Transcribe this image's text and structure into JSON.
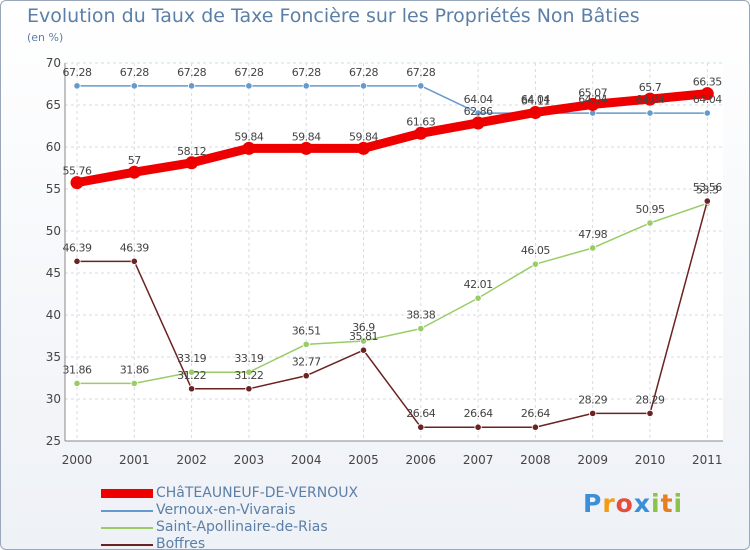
{
  "chart_data": {
    "type": "line",
    "title": "Evolution du Taux de Taxe Foncière sur les Propriétés Non Bâties",
    "unit_label": "(en %)",
    "x": [
      "2000",
      "2001",
      "2002",
      "2003",
      "2004",
      "2005",
      "2006",
      "2007",
      "2008",
      "2009",
      "2010",
      "2011"
    ],
    "ylim": [
      25,
      70
    ],
    "yticks": [
      25,
      30,
      35,
      40,
      45,
      50,
      55,
      60,
      65,
      70
    ],
    "grid": true,
    "series": [
      {
        "name": "CHâTEAUNEUF-DE-VERNOUX",
        "color": "#ee0000",
        "values": [
          55.76,
          57,
          58.12,
          59.84,
          59.84,
          59.84,
          61.63,
          62.86,
          64.11,
          65.07,
          65.7,
          66.35
        ],
        "labels": [
          "55.76",
          "57",
          "58.12",
          "59.84",
          "59.84",
          "59.84",
          "61.63",
          "62.86",
          "64.11",
          "65.07",
          "65.7",
          "66.35"
        ]
      },
      {
        "name": "Vernoux-en-Vivarais",
        "color": "#6699cc",
        "values": [
          67.28,
          67.28,
          67.28,
          67.28,
          67.28,
          67.28,
          67.28,
          64.04,
          64.04,
          64.04,
          64.04,
          64.04
        ],
        "labels": [
          "67.28",
          "67.28",
          "67.28",
          "67.28",
          "67.28",
          "67.28",
          "67.28",
          "64.04",
          "64.04",
          "64.04",
          "64.04",
          "64.04"
        ]
      },
      {
        "name": "Saint-Apollinaire-de-Rias",
        "color": "#99cc66",
        "values": [
          31.86,
          31.86,
          33.19,
          33.19,
          36.51,
          36.9,
          38.38,
          42.01,
          46.05,
          47.98,
          50.95,
          53.3
        ],
        "labels": [
          "31.86",
          "31.86",
          "33.19",
          "33.19",
          "36.51",
          "36.9",
          "38.38",
          "42.01",
          "46.05",
          "47.98",
          "50.95",
          "53.3"
        ]
      },
      {
        "name": "Boffres",
        "color": "#6b2222",
        "values": [
          46.39,
          46.39,
          31.22,
          31.22,
          32.77,
          35.81,
          26.64,
          26.64,
          26.64,
          28.29,
          28.29,
          53.56
        ],
        "labels": [
          "46.39",
          "46.39",
          "31.22",
          "31.22",
          "32.77",
          "35.81",
          "26.64",
          "26.64",
          "26.64",
          "28.29",
          "28.29",
          "53.56"
        ]
      }
    ]
  },
  "logo": {
    "letters": [
      "P",
      "r",
      "o",
      "x",
      "i",
      "t",
      "i"
    ],
    "colors": [
      "#3a8fd6",
      "#f39c12",
      "#e74c3c",
      "#3a8fd6",
      "#8bc34a",
      "#e67e22",
      "#8bc34a"
    ]
  }
}
